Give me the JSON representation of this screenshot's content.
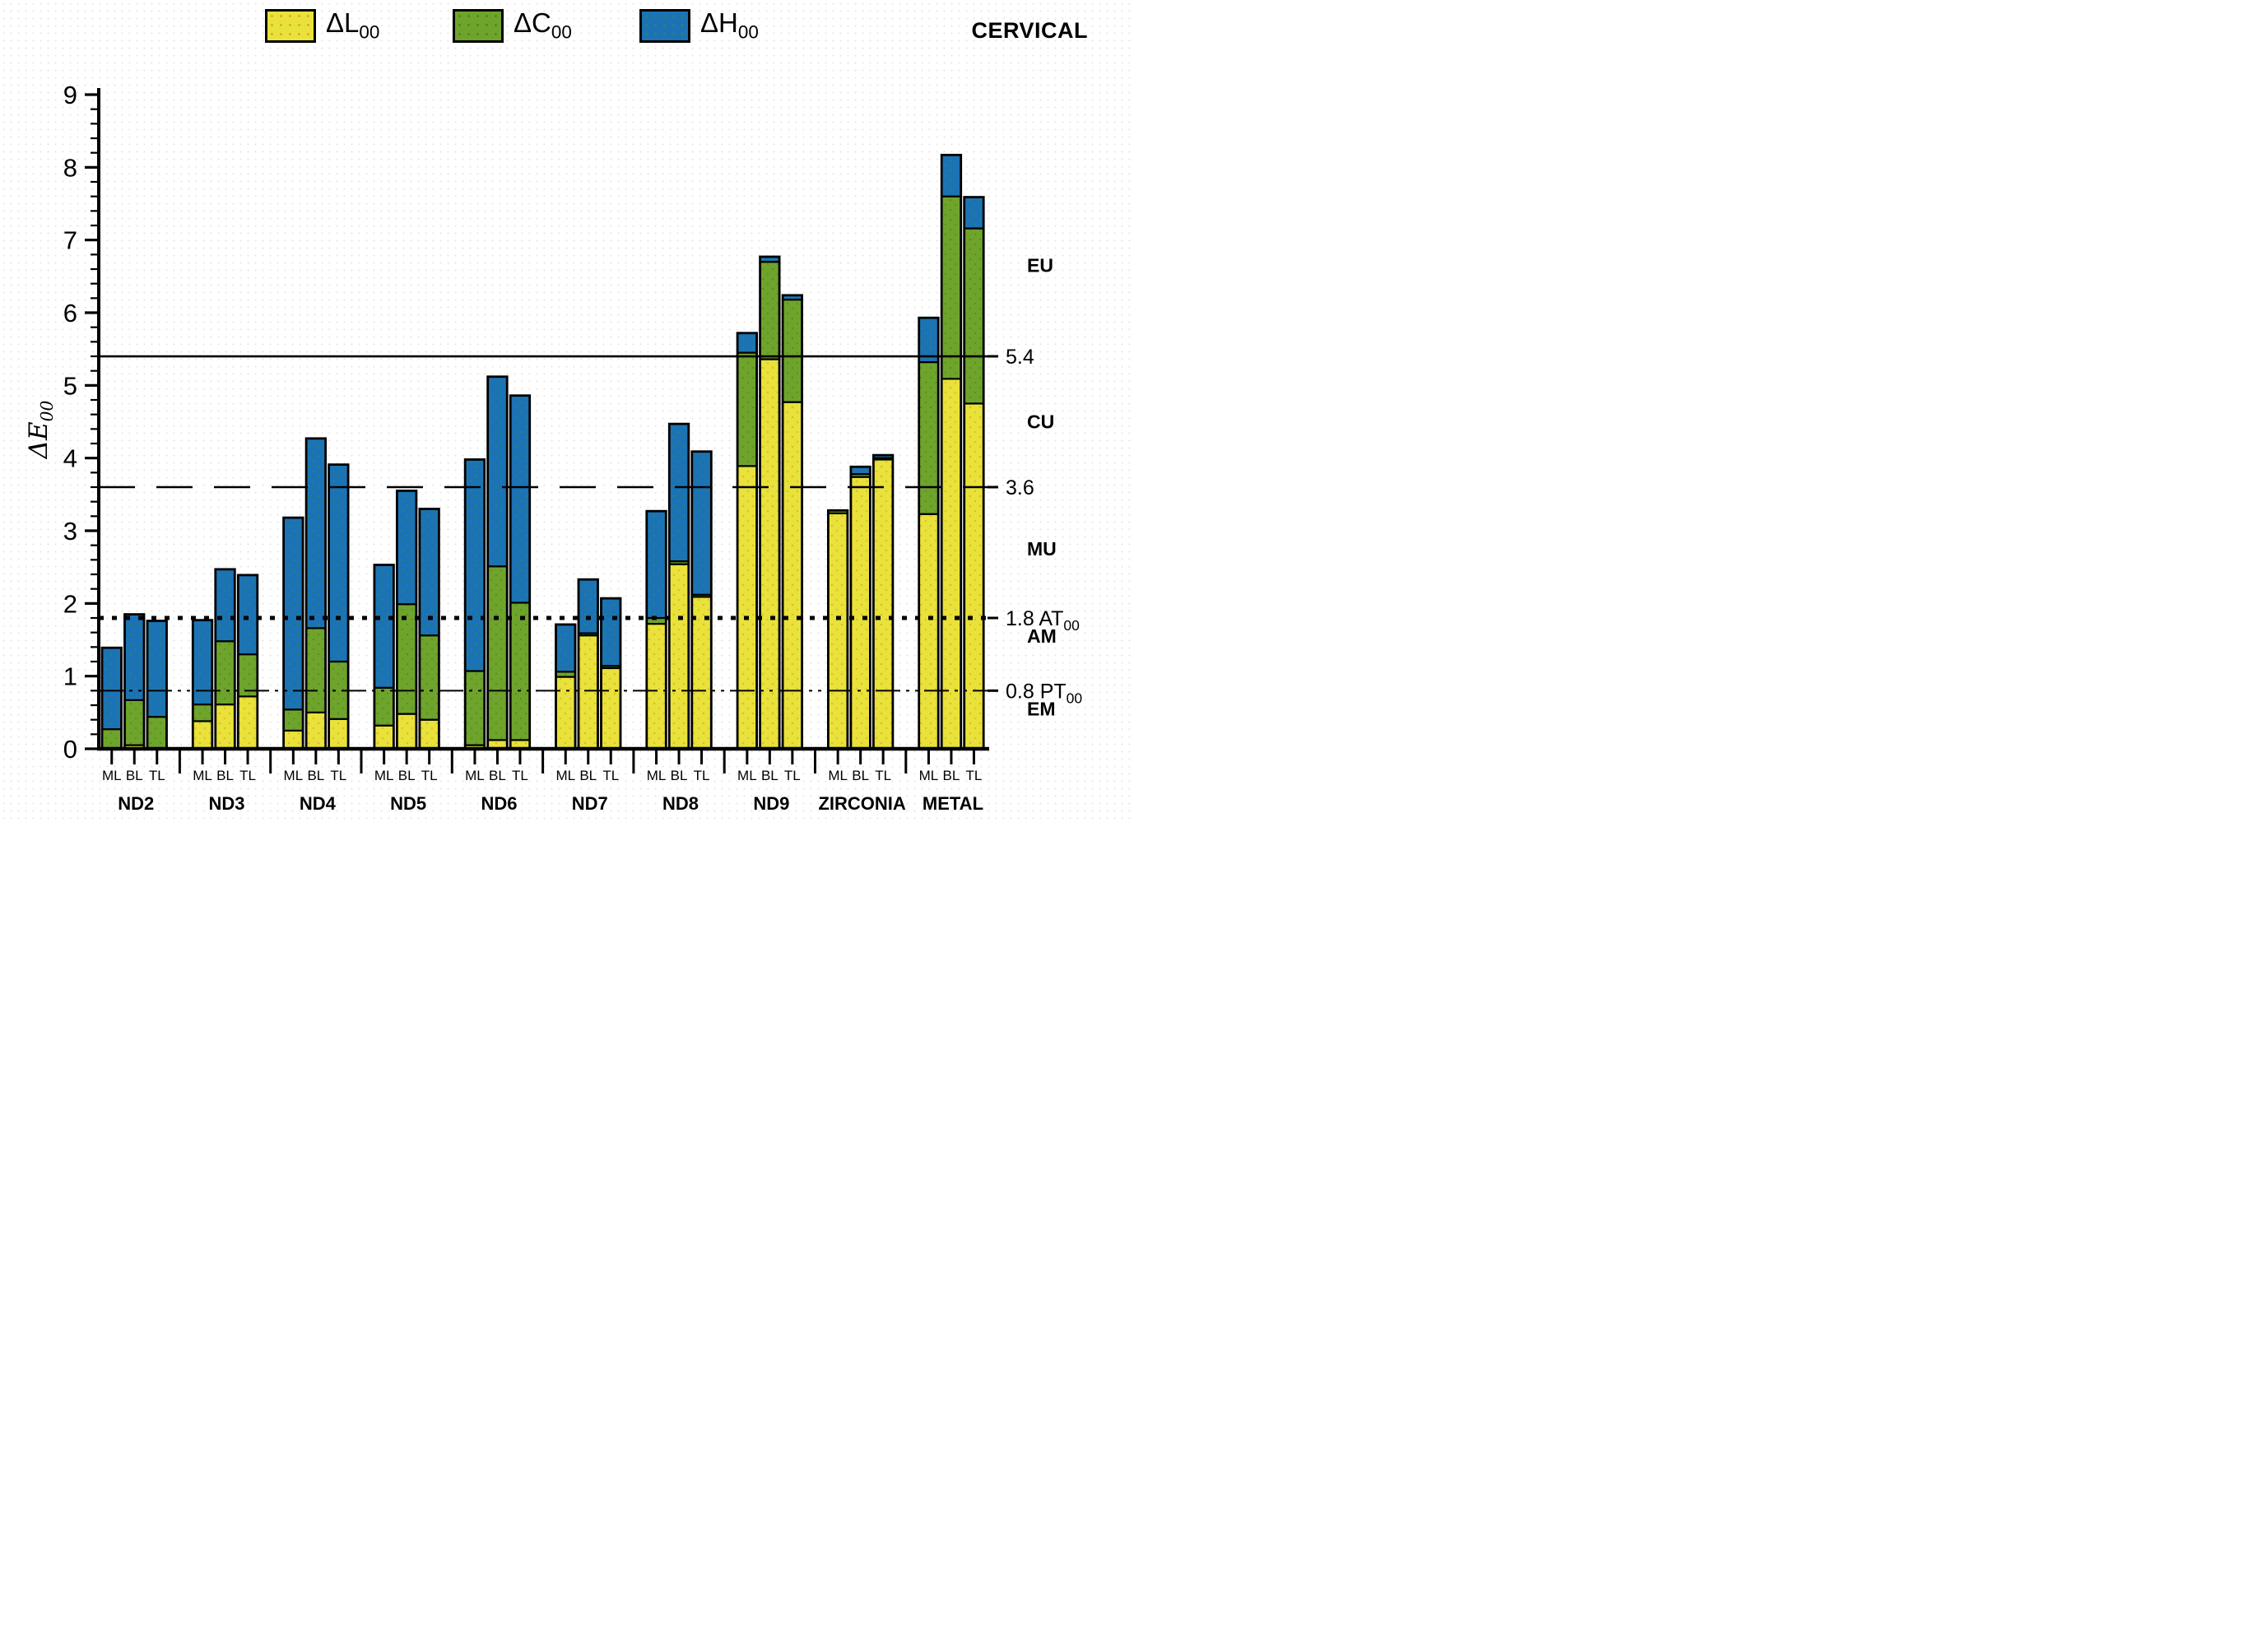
{
  "title": "CERVICAL",
  "y_axis": {
    "label": "ΔE",
    "label_sub": "00"
  },
  "chart_data": {
    "type": "stacked-bar",
    "title": "CERVICAL",
    "ylabel": "ΔE",
    "ylabel_sub": "00",
    "xlabel": "",
    "ylim": [
      0,
      9
    ],
    "y_major_step": 1,
    "y_minor_step": 0.2,
    "y_tick_labels": [
      "0",
      "1",
      "2",
      "3",
      "4",
      "5",
      "6",
      "7",
      "8",
      "9"
    ],
    "grid": false,
    "legend_position": "top",
    "categories": [
      "ND2",
      "ND3",
      "ND4",
      "ND5",
      "ND6",
      "ND7",
      "ND8",
      "ND9",
      "ZIRCONIA",
      "METAL"
    ],
    "bar_labels": [
      "ML",
      "BL",
      "TL"
    ],
    "series": [
      {
        "name": "ΔL",
        "sub": "00",
        "color": "#E8E23A",
        "values": [
          [
            0.0,
            0.05,
            0.0
          ],
          [
            0.38,
            0.61,
            0.72
          ],
          [
            0.25,
            0.5,
            0.41
          ],
          [
            0.32,
            0.48,
            0.4
          ],
          [
            0.05,
            0.12,
            0.12
          ],
          [
            0.99,
            1.56,
            1.11
          ],
          [
            1.72,
            2.54,
            2.09
          ],
          [
            3.89,
            5.36,
            4.77
          ],
          [
            3.24,
            3.74,
            3.98
          ],
          [
            3.23,
            5.09,
            4.75
          ]
        ]
      },
      {
        "name": "ΔC",
        "sub": "00",
        "color": "#6FA42C",
        "values": [
          [
            0.27,
            0.62,
            0.44
          ],
          [
            0.23,
            0.87,
            0.58
          ],
          [
            0.29,
            1.16,
            0.79
          ],
          [
            0.52,
            1.51,
            1.16
          ],
          [
            1.02,
            2.39,
            1.89
          ],
          [
            0.07,
            0.03,
            0.03
          ],
          [
            0.08,
            0.04,
            0.03
          ],
          [
            1.56,
            1.34,
            1.41
          ],
          [
            0.04,
            0.04,
            0.02
          ],
          [
            2.09,
            2.51,
            2.41
          ]
        ]
      },
      {
        "name": "ΔH",
        "sub": "00",
        "color": "#1B73B5",
        "values": [
          [
            1.12,
            1.18,
            1.32
          ],
          [
            1.16,
            0.99,
            1.09
          ],
          [
            2.64,
            2.61,
            2.71
          ],
          [
            1.69,
            1.56,
            1.74
          ],
          [
            2.91,
            2.61,
            2.85
          ],
          [
            0.65,
            0.74,
            0.93
          ],
          [
            1.47,
            1.89,
            1.97
          ],
          [
            0.27,
            0.07,
            0.06
          ],
          [
            0.0,
            0.1,
            0.04
          ],
          [
            0.61,
            0.57,
            0.43
          ]
        ]
      }
    ],
    "totals": [
      [
        1.39,
        1.85,
        1.76
      ],
      [
        1.77,
        2.47,
        2.39
      ],
      [
        3.18,
        4.27,
        3.91
      ],
      [
        2.53,
        3.55,
        3.3
      ],
      [
        3.98,
        5.12,
        4.86
      ],
      [
        1.71,
        2.33,
        2.07
      ],
      [
        3.27,
        4.47,
        4.09
      ],
      [
        5.72,
        6.77,
        6.24
      ],
      [
        3.28,
        3.88,
        4.04
      ],
      [
        5.93,
        8.17,
        7.59
      ]
    ],
    "reference_lines": [
      {
        "value": 5.4,
        "style": "solid",
        "label": "5.4",
        "tag": "",
        "tag_sub": ""
      },
      {
        "value": 3.6,
        "style": "dashed",
        "label": "3.6",
        "tag": "",
        "tag_sub": ""
      },
      {
        "value": 1.8,
        "style": "dotted",
        "label": "1.8",
        "tag": "AT",
        "tag_sub": "00"
      },
      {
        "value": 0.8,
        "style": "dash-dot-dot",
        "label": "0.8",
        "tag": "PT",
        "tag_sub": "00"
      }
    ],
    "zone_labels": [
      {
        "text": "EU",
        "value": 6.65
      },
      {
        "text": "CU",
        "value": 4.5
      },
      {
        "text": "MU",
        "value": 2.75
      },
      {
        "text": "AM",
        "value": 1.55
      },
      {
        "text": "EM",
        "value": 0.55
      }
    ]
  }
}
